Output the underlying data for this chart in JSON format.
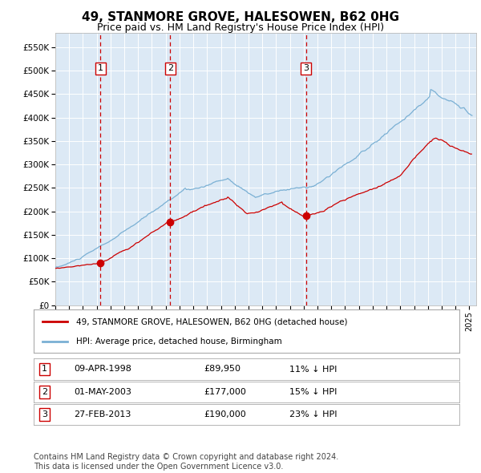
{
  "title": "49, STANMORE GROVE, HALESOWEN, B62 0HG",
  "subtitle": "Price paid vs. HM Land Registry's House Price Index (HPI)",
  "title_fontsize": 11,
  "subtitle_fontsize": 9,
  "background_color": "#ffffff",
  "plot_bg_color": "#dce9f5",
  "grid_color": "#ffffff",
  "red_line_color": "#cc0000",
  "blue_line_color": "#7ab0d4",
  "vline_color": "#cc0000",
  "sale_dates_years": [
    1998.27,
    2003.33,
    2013.16
  ],
  "sale_prices": [
    89950,
    177000,
    190000
  ],
  "sale_labels": [
    "1",
    "2",
    "3"
  ],
  "ylim": [
    0,
    580000
  ],
  "xlim_start": 1995,
  "xlim_end": 2025.5,
  "ytick_values": [
    0,
    50000,
    100000,
    150000,
    200000,
    250000,
    300000,
    350000,
    400000,
    450000,
    500000,
    550000
  ],
  "ytick_labels": [
    "£0",
    "£50K",
    "£100K",
    "£150K",
    "£200K",
    "£250K",
    "£300K",
    "£350K",
    "£400K",
    "£450K",
    "£500K",
    "£550K"
  ],
  "xtick_years": [
    1995,
    1996,
    1997,
    1998,
    1999,
    2000,
    2001,
    2002,
    2003,
    2004,
    2005,
    2006,
    2007,
    2008,
    2009,
    2010,
    2011,
    2012,
    2013,
    2014,
    2015,
    2016,
    2017,
    2018,
    2019,
    2020,
    2021,
    2022,
    2023,
    2024,
    2025
  ],
  "legend_label_red": "49, STANMORE GROVE, HALESOWEN, B62 0HG (detached house)",
  "legend_label_blue": "HPI: Average price, detached house, Birmingham",
  "table_data": [
    [
      "1",
      "09-APR-1998",
      "£89,950",
      "11% ↓ HPI"
    ],
    [
      "2",
      "01-MAY-2003",
      "£177,000",
      "15% ↓ HPI"
    ],
    [
      "3",
      "27-FEB-2013",
      "£190,000",
      "23% ↓ HPI"
    ]
  ],
  "footnote": "Contains HM Land Registry data © Crown copyright and database right 2024.\nThis data is licensed under the Open Government Licence v3.0.",
  "footnote_fontsize": 7
}
